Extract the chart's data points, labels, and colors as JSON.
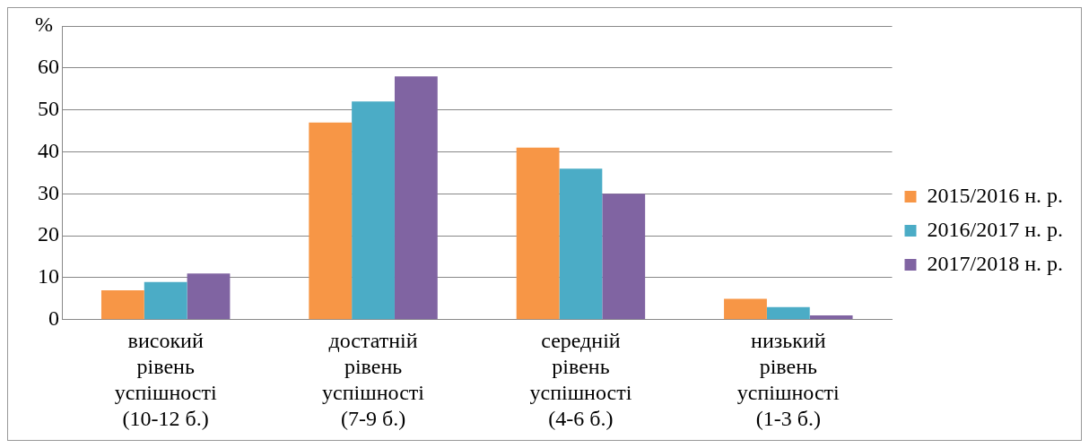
{
  "chart_data": {
    "type": "bar",
    "ylabel": "%",
    "categories": [
      "високий рівень успішності (10-12 б.)",
      "достатній рівень успішності (7-9 б.)",
      "середній рівень успішності (4-6 б.)",
      "низький рівень успішності (1-3 б.)"
    ],
    "series": [
      {
        "name": "2015/2016 н. р.",
        "color": "#f79646",
        "values": [
          7,
          47,
          41,
          5
        ]
      },
      {
        "name": "2016/2017 н. р.",
        "color": "#4bacc6",
        "values": [
          9,
          52,
          36,
          3
        ]
      },
      {
        "name": "2017/2018 н. р.",
        "color": "#8064a2",
        "values": [
          11,
          58,
          30,
          1
        ]
      }
    ],
    "ylim": [
      0,
      70
    ],
    "yticks": [
      0,
      10,
      20,
      30,
      40,
      50,
      60,
      {
        "value": 70,
        "label": null
      }
    ],
    "grid": "y",
    "legend": "right"
  }
}
